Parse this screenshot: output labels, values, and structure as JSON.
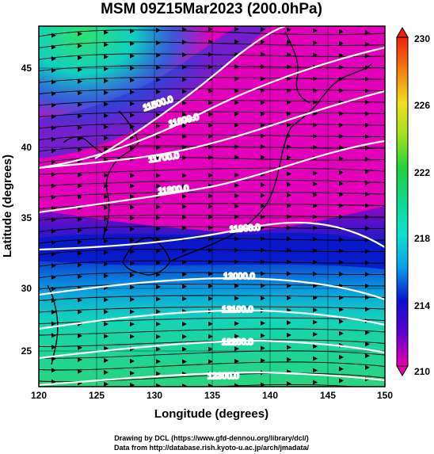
{
  "title": "MSM 09Z15Mar2023 (200.0hPa)",
  "xlabel": "Longitude (degrees)",
  "ylabel": "Latitude (degrees)",
  "x_ticks": [
    "120",
    "125",
    "130",
    "135",
    "140",
    "145",
    "150"
  ],
  "y_ticks": [
    "25",
    "30",
    "35",
    "40",
    "45"
  ],
  "colorbar": {
    "ticks": [
      "210",
      "214",
      "218",
      "222",
      "226",
      "230"
    ],
    "colors": [
      "#e400b8",
      "#0a0ad0",
      "#10e0d8",
      "#10d860",
      "#e8e820",
      "#f03010"
    ]
  },
  "contours": [
    {
      "label": "11500.0"
    },
    {
      "label": "11600.0"
    },
    {
      "label": "11700.0"
    },
    {
      "label": "11800.0"
    },
    {
      "label": "11900.0"
    },
    {
      "label": "12000.0"
    },
    {
      "label": "12100.0"
    },
    {
      "label": "12200.0"
    },
    {
      "label": "12300.0"
    }
  ],
  "footer": {
    "line1": "Drawing by DCL (https://www.gfd-dennou.org/library/dcl/)",
    "line2": "Data from http://database.rish.kyoto-u.ac.jp/arch/jmadata/"
  }
}
